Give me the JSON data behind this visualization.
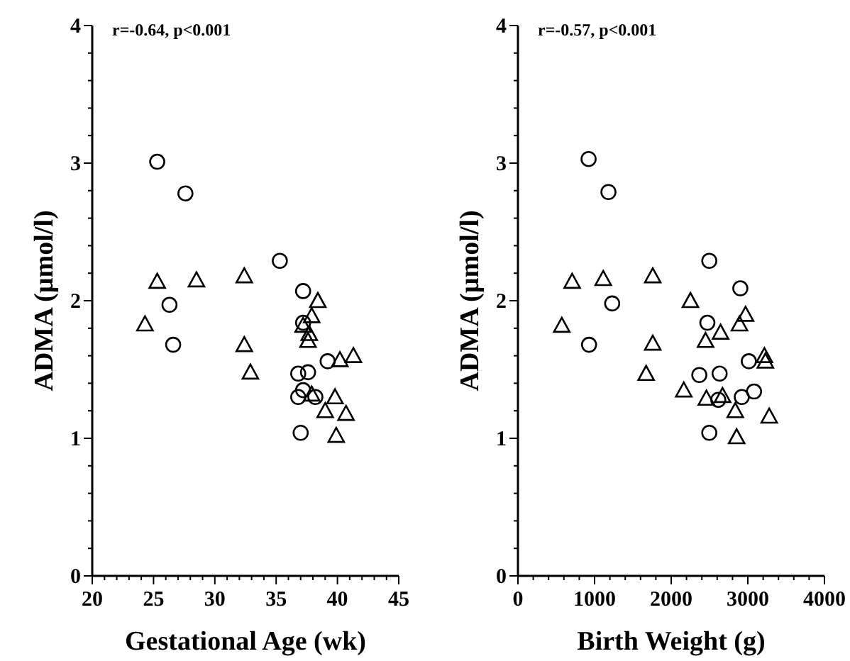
{
  "chart_data": [
    {
      "type": "scatter",
      "xlabel": "Gestational Age (wk)",
      "ylabel": "ADMA (µmol/l)",
      "annotations": [
        "r=-0.64, p<0.001"
      ],
      "xlim": [
        20,
        45
      ],
      "ylim": [
        0,
        4
      ],
      "xticks": [
        20,
        {
          "value": 21,
          "label": null
        },
        {
          "value": 22,
          "label": null
        },
        {
          "value": 23,
          "label": null
        },
        {
          "value": 24,
          "label": null
        },
        25,
        {
          "value": 26,
          "label": null
        },
        {
          "value": 27,
          "label": null
        },
        {
          "value": 28,
          "label": null
        },
        {
          "value": 29,
          "label": null
        },
        30,
        {
          "value": 31,
          "label": null
        },
        {
          "value": 32,
          "label": null
        },
        {
          "value": 33,
          "label": null
        },
        {
          "value": 34,
          "label": null
        },
        35,
        {
          "value": 36,
          "label": null
        },
        {
          "value": 37,
          "label": null
        },
        {
          "value": 38,
          "label": null
        },
        {
          "value": 39,
          "label": null
        },
        40,
        {
          "value": 41,
          "label": null
        },
        {
          "value": 42,
          "label": null
        },
        {
          "value": 43,
          "label": null
        },
        {
          "value": 44,
          "label": null
        },
        45
      ],
      "yticks": [
        0,
        {
          "value": 0.2,
          "label": null
        },
        {
          "value": 0.4,
          "label": null
        },
        {
          "value": 0.6,
          "label": null
        },
        {
          "value": 0.8,
          "label": null
        },
        1,
        {
          "value": 1.2,
          "label": null
        },
        {
          "value": 1.4,
          "label": null
        },
        {
          "value": 1.6,
          "label": null
        },
        {
          "value": 1.8,
          "label": null
        },
        2,
        {
          "value": 2.2,
          "label": null
        },
        {
          "value": 2.4,
          "label": null
        },
        {
          "value": 2.6,
          "label": null
        },
        {
          "value": 2.8,
          "label": null
        },
        3,
        {
          "value": 3.2,
          "label": null
        },
        {
          "value": 3.4,
          "label": null
        },
        {
          "value": 3.6,
          "label": null
        },
        {
          "value": 3.8,
          "label": null
        },
        4
      ],
      "series": [
        {
          "color": "#000000",
          "marker": "circle",
          "x": [
            25.3,
            27.6,
            35.3,
            37.2,
            26.3,
            26.6,
            37.2,
            39.2,
            36.8,
            37.6,
            37.2,
            36.8,
            38.2,
            37.0
          ],
          "values": [
            3.01,
            2.78,
            2.29,
            2.07,
            1.97,
            1.68,
            1.84,
            1.56,
            1.47,
            1.48,
            1.35,
            1.3,
            1.3,
            1.04
          ]
        },
        {
          "color": "#000000",
          "marker": "triangle",
          "x": [
            25.3,
            28.5,
            32.4,
            24.3,
            38.4,
            37.9,
            37.2,
            37.7,
            37.6,
            32.4,
            32.9,
            40.2,
            41.3,
            37.9,
            39.8,
            39.0,
            40.7,
            39.9
          ],
          "values": [
            2.14,
            2.15,
            2.18,
            1.83,
            2.0,
            1.89,
            1.82,
            1.76,
            1.71,
            1.68,
            1.48,
            1.57,
            1.6,
            1.32,
            1.3,
            1.2,
            1.18,
            1.02
          ]
        }
      ]
    },
    {
      "type": "scatter",
      "xlabel": "Birth Weight (g)",
      "ylabel": "ADMA (µmol/l)",
      "annotations": [
        "r=-0.57, p<0.001"
      ],
      "xlim": [
        0,
        4000
      ],
      "ylim": [
        0,
        4
      ],
      "xticks": [
        0,
        {
          "value": 200,
          "label": null
        },
        {
          "value": 400,
          "label": null
        },
        {
          "value": 600,
          "label": null
        },
        {
          "value": 800,
          "label": null
        },
        1000,
        {
          "value": 1200,
          "label": null
        },
        {
          "value": 1400,
          "label": null
        },
        {
          "value": 1600,
          "label": null
        },
        {
          "value": 1800,
          "label": null
        },
        2000,
        {
          "value": 2200,
          "label": null
        },
        {
          "value": 2400,
          "label": null
        },
        {
          "value": 2600,
          "label": null
        },
        {
          "value": 2800,
          "label": null
        },
        3000,
        {
          "value": 3200,
          "label": null
        },
        {
          "value": 3400,
          "label": null
        },
        {
          "value": 3600,
          "label": null
        },
        {
          "value": 3800,
          "label": null
        },
        4000
      ],
      "yticks": [
        0,
        {
          "value": 0.2,
          "label": null
        },
        {
          "value": 0.4,
          "label": null
        },
        {
          "value": 0.6,
          "label": null
        },
        {
          "value": 0.8,
          "label": null
        },
        1,
        {
          "value": 1.2,
          "label": null
        },
        {
          "value": 1.4,
          "label": null
        },
        {
          "value": 1.6,
          "label": null
        },
        {
          "value": 1.8,
          "label": null
        },
        2,
        {
          "value": 2.2,
          "label": null
        },
        {
          "value": 2.4,
          "label": null
        },
        {
          "value": 2.6,
          "label": null
        },
        {
          "value": 2.8,
          "label": null
        },
        3,
        {
          "value": 3.2,
          "label": null
        },
        {
          "value": 3.4,
          "label": null
        },
        {
          "value": 3.6,
          "label": null
        },
        {
          "value": 3.8,
          "label": null
        },
        4
      ],
      "series": [
        {
          "color": "#000000",
          "marker": "circle",
          "x": [
            922,
            1181,
            2497,
            2902,
            1230,
            928,
            2472,
            3013,
            2367,
            2632,
            3081,
            2921,
            2614,
            2497
          ],
          "values": [
            3.03,
            2.79,
            2.29,
            2.09,
            1.98,
            1.68,
            1.84,
            1.56,
            1.46,
            1.47,
            1.34,
            1.3,
            1.28,
            1.04
          ]
        },
        {
          "color": "#000000",
          "marker": "triangle",
          "x": [
            707,
            1113,
            1759,
            572,
            2251,
            2970,
            2891,
            2644,
            2448,
            1759,
            1673,
            3216,
            3229,
            2164,
            2459,
            2670,
            2836,
            3279,
            2854
          ],
          "values": [
            2.14,
            2.16,
            2.18,
            1.82,
            2.0,
            1.9,
            1.83,
            1.77,
            1.71,
            1.69,
            1.47,
            1.6,
            1.56,
            1.35,
            1.29,
            1.31,
            1.2,
            1.16,
            1.01
          ]
        }
      ]
    }
  ]
}
